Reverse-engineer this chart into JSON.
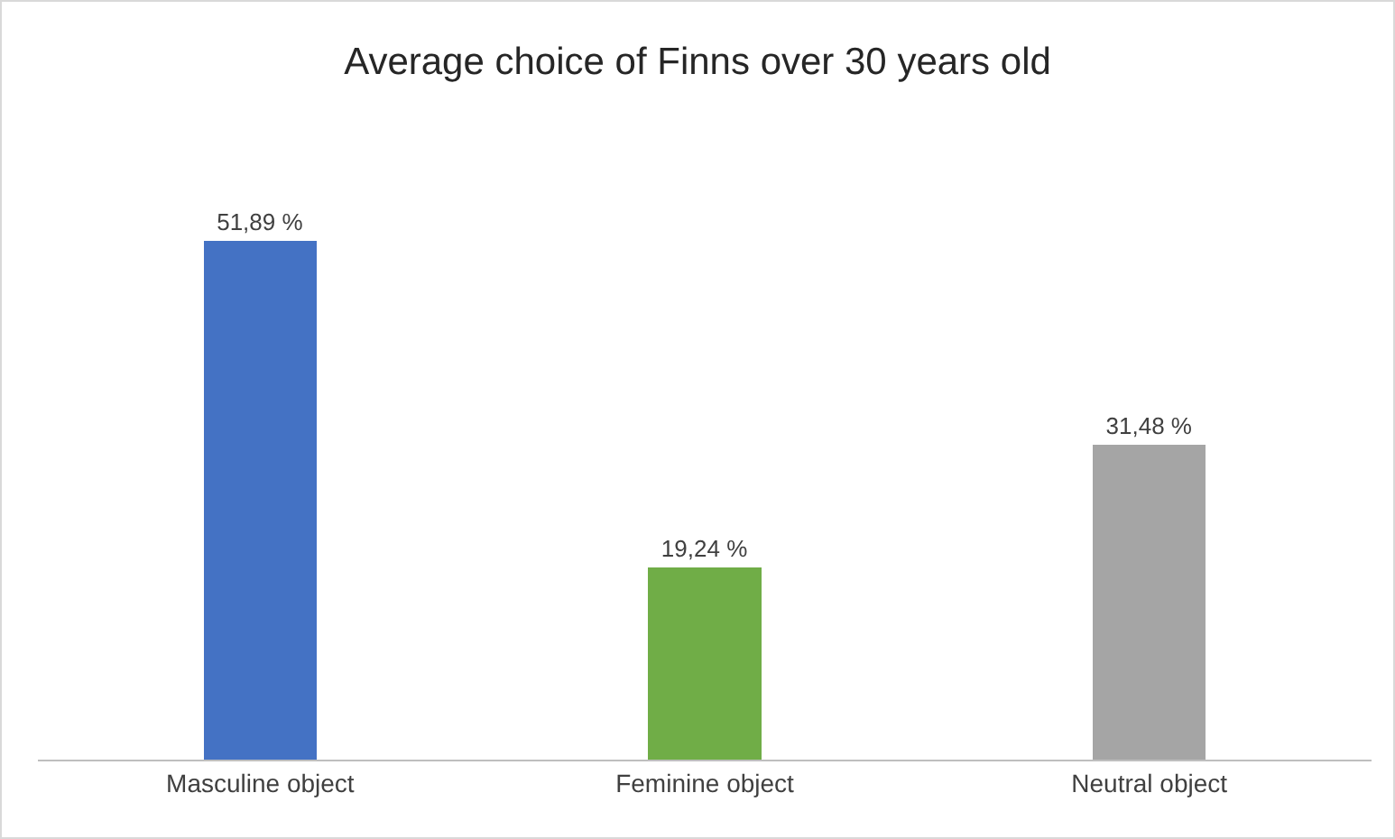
{
  "chart_data": {
    "type": "bar",
    "title": "Average choice of Finns over 30 years old",
    "categories": [
      "Masculine object",
      "Feminine object",
      "Neutral object"
    ],
    "values": [
      51.89,
      19.24,
      31.48
    ],
    "colors": [
      "#4472c4",
      "#70ad47",
      "#a5a5a5"
    ],
    "value_labels": [
      "51,89 %",
      "19,24 %",
      "31,48 %"
    ],
    "grid": false,
    "legend": false
  }
}
